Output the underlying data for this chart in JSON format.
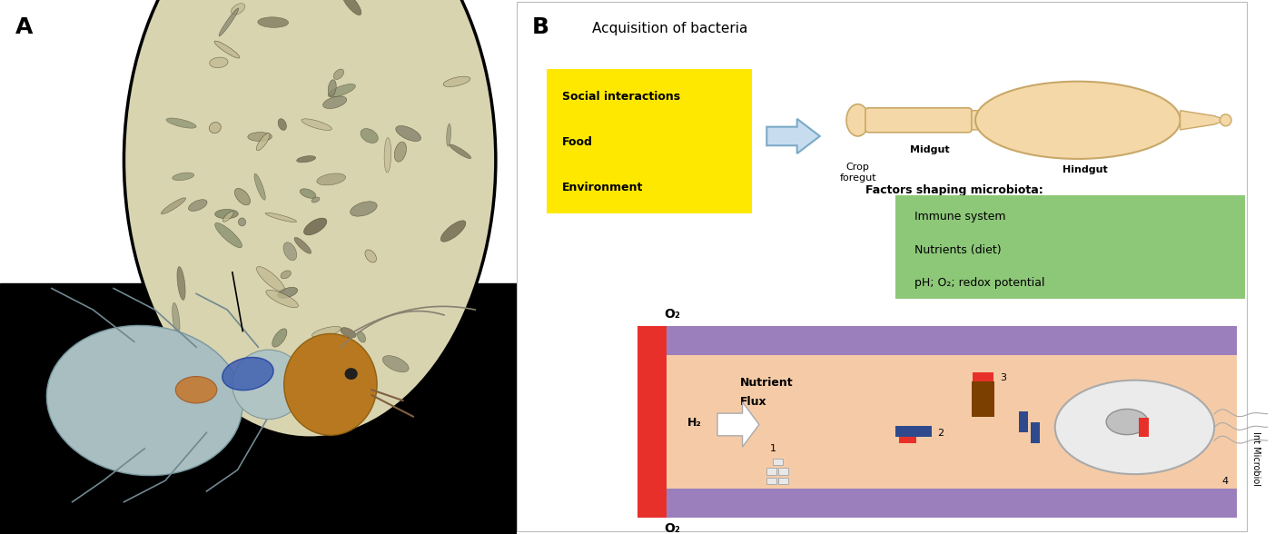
{
  "panel_A_label": "A",
  "panel_B_label": "B",
  "acq_bacteria_text": "Acquisition of bacteria",
  "yellow_box_lines": [
    "Social interactions",
    "Food",
    "Environment"
  ],
  "yellow_box_color": "#FFE800",
  "green_box_lines": [
    "Immune system",
    "Nutrients (diet)",
    "pH; O₂; redox potential"
  ],
  "green_box_color": "#8DC878",
  "gut_labels": [
    "Crop\nforegut",
    "Midgut",
    "Hindgut"
  ],
  "factors_text": "Factors shaping microbiota:",
  "o2_top": "O₂",
  "o2_bottom": "O₂",
  "h2_text": "H₂",
  "numbers": [
    "1",
    "2",
    "3",
    "4"
  ],
  "purple_color": "#9B7FBD",
  "peach_color": "#F5CBA7",
  "red_color": "#E8302A",
  "brown_color": "#7B3F00",
  "blue_dark": "#2E4A8C",
  "int_microbiol_text": "Int Microbiol",
  "background_color": "#FFFFFF",
  "photo_bg_top": "#D8D8D0",
  "photo_bg_bottom": "#000000",
  "gut_fill": "#F5D8A8",
  "gut_edge": "#C8A868",
  "arrow_fill": "#C8DCF0",
  "arrow_edge": "#7AAAC8"
}
